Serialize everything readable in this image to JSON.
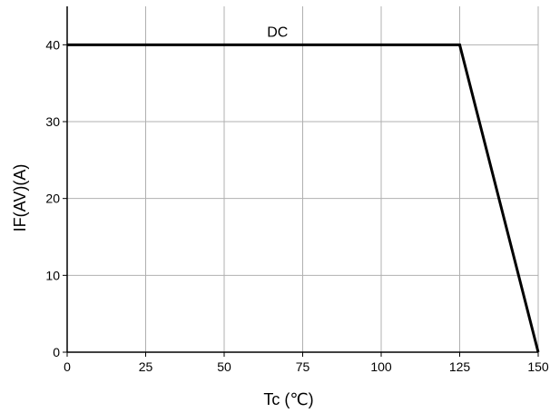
{
  "chart_data": {
    "type": "line",
    "title": "",
    "xlabel": "Tc (℃)",
    "ylabel": "IF(AV)(A)",
    "xlim": [
      0,
      150
    ],
    "ylim": [
      0,
      45
    ],
    "xticks": [
      0,
      25,
      50,
      75,
      100,
      125,
      150
    ],
    "yticks": [
      0,
      10,
      20,
      30,
      40
    ],
    "x_tick_labels": [
      "0",
      "25",
      "50",
      "75",
      "100",
      "125",
      "150"
    ],
    "y_tick_labels": [
      "0",
      "10",
      "20",
      "30",
      "40"
    ],
    "grid": true,
    "series": [
      {
        "name": "DC",
        "x": [
          0,
          125,
          150
        ],
        "y": [
          40,
          40,
          0
        ]
      }
    ],
    "annotations": [
      {
        "text": "DC",
        "x": 67,
        "y": 40
      }
    ],
    "colors": {
      "line": "#000000",
      "grid": "#b0b0b0",
      "axis": "#000000"
    }
  }
}
